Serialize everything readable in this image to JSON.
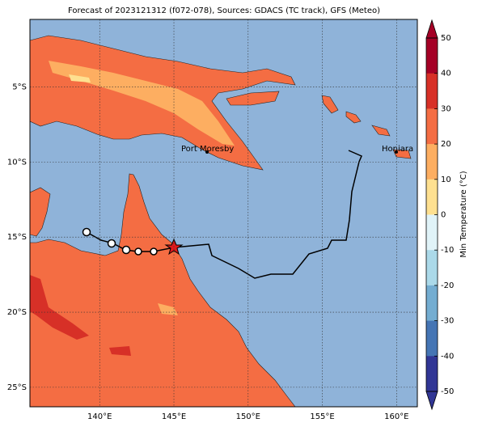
{
  "title": "Forecast of 2023121312 (f072-078), Sources: GDACS (TC track), GFS (Meteo)",
  "map": {
    "lonlim": [
      135.3,
      161.4
    ],
    "latlim": [
      -0.5,
      -26.3
    ],
    "lonticks": [
      {
        "value": 140,
        "label": "140°E"
      },
      {
        "value": 145,
        "label": "145°E"
      },
      {
        "value": 150,
        "label": "150°E"
      },
      {
        "value": 155,
        "label": "155°E"
      },
      {
        "value": 160,
        "label": "160°E"
      }
    ],
    "latticks": [
      {
        "value": -5,
        "label": "5°S"
      },
      {
        "value": -10,
        "label": "10°S"
      },
      {
        "value": -15,
        "label": "15°S"
      },
      {
        "value": -20,
        "label": "20°S"
      },
      {
        "value": -25,
        "label": "25°S"
      }
    ],
    "places": [
      "Port Moresby",
      "Honiara"
    ]
  },
  "colorbar": {
    "label": "Min Temperature (°C)",
    "lim": [
      -50,
      50
    ],
    "ticks": [
      50,
      40,
      30,
      20,
      10,
      0,
      -10,
      -20,
      -30,
      -40,
      -50
    ],
    "colors": [
      "#a50026",
      "#d73027",
      "#f46d43",
      "#fdae61",
      "#fee090",
      "#e0f3f8",
      "#abd9e9",
      "#74add1",
      "#4575b4",
      "#313695"
    ]
  }
}
